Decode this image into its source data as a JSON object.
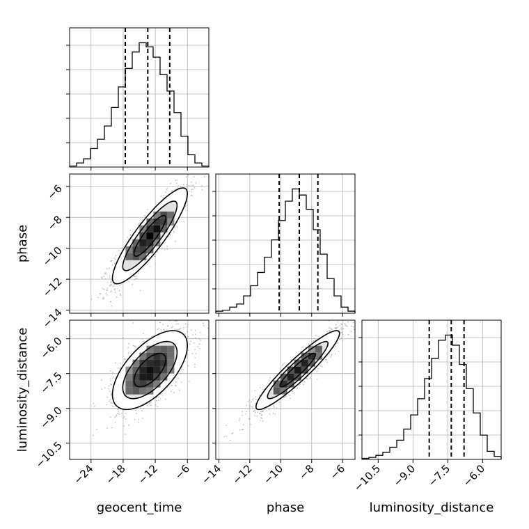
{
  "chart_data": {
    "type": "corner",
    "parameters": [
      {
        "label": "geocent_time",
        "ticks": [
          -24,
          -18,
          -12,
          -6
        ],
        "tick_labels": [
          "−24",
          "−18",
          "−12",
          "−6"
        ],
        "range": [
          -28,
          -2
        ]
      },
      {
        "label": "phase",
        "ticks": [
          -14,
          -12,
          -10,
          -8,
          -6
        ],
        "tick_labels": [
          "−14",
          "−12",
          "−10",
          "−8",
          "−6"
        ],
        "range": [
          -14.2,
          -5.2
        ]
      },
      {
        "label": "luminosity_distance",
        "ticks": [
          -10.5,
          -9.0,
          -7.5,
          -6.0
        ],
        "tick_labels": [
          "−10.5",
          "−9.0",
          "−7.5",
          "−6.0"
        ],
        "range": [
          -11.2,
          -5.2
        ]
      }
    ],
    "histograms": [
      {
        "param": "geocent_time",
        "bin_edges": [
          -28,
          -26.7,
          -25.4,
          -24.1,
          -22.8,
          -21.5,
          -20.2,
          -18.9,
          -17.6,
          -16.3,
          -15.0,
          -13.7,
          -12.4,
          -11.1,
          -9.8,
          -8.5,
          -7.2,
          -5.9,
          -4.6,
          -3.3,
          -2.0
        ],
        "counts": [
          1,
          4,
          8,
          18,
          27,
          40,
          58,
          78,
          96,
          112,
          121,
          117,
          107,
          90,
          74,
          53,
          30,
          12,
          4,
          1
        ],
        "quantiles": [
          -17.6,
          -13.4,
          -9.3
        ]
      },
      {
        "param": "phase",
        "bin_edges": [
          -14.2,
          -13.75,
          -13.3,
          -12.85,
          -12.4,
          -11.95,
          -11.5,
          -11.05,
          -10.6,
          -10.15,
          -9.7,
          -9.25,
          -8.8,
          -8.35,
          -7.9,
          -7.45,
          -7.0,
          -6.55,
          -6.1,
          -5.65,
          -5.2
        ],
        "counts": [
          2,
          3,
          6,
          9,
          17,
          27,
          40,
          55,
          72,
          91,
          110,
          122,
          116,
          102,
          82,
          58,
          34,
          17,
          6,
          2
        ],
        "quantiles": [
          -10.1,
          -8.8,
          -7.6
        ]
      },
      {
        "param": "luminosity_distance",
        "bin_edges": [
          -11.2,
          -10.9,
          -10.6,
          -10.3,
          -10.0,
          -9.7,
          -9.4,
          -9.1,
          -8.8,
          -8.5,
          -8.2,
          -7.9,
          -7.6,
          -7.3,
          -7.0,
          -6.7,
          -6.4,
          -6.1,
          -5.8,
          -5.5,
          -5.2
        ],
        "counts": [
          1,
          2,
          4,
          7,
          12,
          19,
          30,
          44,
          60,
          80,
          100,
          118,
          123,
          113,
          94,
          70,
          46,
          24,
          8,
          3
        ],
        "quantiles": [
          -8.3,
          -7.35,
          -6.8
        ]
      }
    ],
    "joint": [
      {
        "x": "geocent_time",
        "y": "phase",
        "mean": [
          -13.0,
          -9.2
        ],
        "sigma": [
          3.5,
          1.55
        ],
        "rho": 0.88
      },
      {
        "x": "geocent_time",
        "y": "luminosity_distance",
        "mean": [
          -13.0,
          -7.35
        ],
        "sigma": [
          3.5,
          0.85
        ],
        "rho": 0.62
      },
      {
        "x": "phase",
        "y": "luminosity_distance",
        "mean": [
          -8.9,
          -7.35
        ],
        "sigma": [
          1.35,
          0.85
        ],
        "rho": 0.93
      }
    ],
    "grid": true
  }
}
